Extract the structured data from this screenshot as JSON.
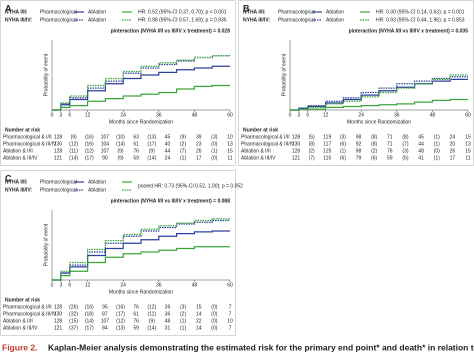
{
  "chart_data": [
    {
      "type": "line",
      "panel": "A",
      "legend_rows": [
        {
          "label": "NYHA I/II:",
          "hr": "HR: 0.52 (95%-CI 0.37, 0.70); p < 0.001"
        },
        {
          "label": "NYHA III/IV:",
          "hr": "HR: 0.98 (95%-CI 0.57, 1.69); p = 0.935"
        }
      ],
      "p_interaction": "pinteraction (NYHA I/II vs III/IV x treatment) = 0.028",
      "xlabel": "Months since Randomization",
      "ylabel": "Probability of event",
      "x": [
        0,
        3,
        6,
        12,
        18,
        24,
        30,
        36,
        42,
        48,
        54,
        60
      ],
      "xlim": [
        0,
        60
      ],
      "xticks": [
        0,
        3,
        6,
        12,
        24,
        36,
        48,
        60
      ],
      "ylim": [
        0,
        0.8
      ],
      "series": [
        {
          "name": "Pharmacological",
          "color": "#2b3f9e",
          "dashed": false,
          "values": [
            0,
            0.06,
            0.12,
            0.22,
            0.3,
            0.36,
            0.4,
            0.43,
            0.46,
            0.48,
            0.5,
            0.5
          ]
        },
        {
          "name": "Ablation",
          "color": "#3aa63a",
          "dashed": false,
          "values": [
            0,
            0.03,
            0.05,
            0.1,
            0.13,
            0.16,
            0.18,
            0.2,
            0.24,
            0.27,
            0.28,
            0.28
          ]
        },
        {
          "name": "Pharmacological",
          "color": "#2b3f9e",
          "dashed": true,
          "values": [
            0,
            0.07,
            0.14,
            0.25,
            0.33,
            0.42,
            0.48,
            0.52,
            0.56,
            0.6,
            0.62,
            0.62
          ]
        },
        {
          "name": "Ablation",
          "color": "#3aa63a",
          "dashed": true,
          "values": [
            0,
            0.08,
            0.16,
            0.28,
            0.36,
            0.44,
            0.5,
            0.54,
            0.57,
            0.6,
            0.62,
            0.63
          ]
        }
      ],
      "risk_table": {
        "title": "Number at risk",
        "rows": [
          {
            "label": "Pharmacological & I/II",
            "values": [
              "128",
              "(9)",
              "(16)",
              "107",
              "(10)",
              "63",
              "(13)",
              "45",
              "(9)",
              "39",
              "(3)",
              "10"
            ]
          },
          {
            "label": "Pharmacological & III/IV",
            "values": [
              "130",
              "(12)",
              "(16)",
              "104",
              "(14)",
              "61",
              "(17)",
              "40",
              "(2)",
              "23",
              "(0)",
              "13"
            ]
          },
          {
            "label": "Ablation & I/II",
            "values": [
              "128",
              "(11)",
              "(12)",
              "107",
              "(9)",
              "76",
              "(9)",
              "44",
              "(7)",
              "26",
              "(1)",
              "15"
            ]
          },
          {
            "label": "Ablation & III/IV",
            "values": [
              "121",
              "(14)",
              "(17)",
              "90",
              "(9)",
              "59",
              "(14)",
              "24",
              "(1)",
              "17",
              "(0)",
              "11"
            ]
          }
        ]
      }
    },
    {
      "type": "line",
      "panel": "B",
      "legend_rows": [
        {
          "label": "NYHA I/II:",
          "hr": "HR: 0.30 (95%-CI 0.14, 0.63); p = 0.001"
        },
        {
          "label": "NYHA III/IV:",
          "hr": "HR: 0.93 (95%-CI 0.44, 1.96); p = 0.853"
        }
      ],
      "p_interaction": "pinteraction (NYHA I/II vs III/IV x treatment) = 0.035",
      "xlabel": "Months since Randomization",
      "ylabel": "Probability of event",
      "x": [
        0,
        3,
        6,
        12,
        18,
        24,
        30,
        36,
        42,
        48,
        54,
        60
      ],
      "xlim": [
        0,
        60
      ],
      "xticks": [
        0,
        3,
        6,
        12,
        24,
        36,
        48,
        60
      ],
      "ylim": [
        0,
        0.8
      ],
      "series": [
        {
          "name": "Pharmacological",
          "color": "#2b3f9e",
          "dashed": false,
          "values": [
            0,
            0.02,
            0.04,
            0.08,
            0.12,
            0.17,
            0.22,
            0.26,
            0.3,
            0.33,
            0.35,
            0.35
          ]
        },
        {
          "name": "Ablation",
          "color": "#3aa63a",
          "dashed": false,
          "values": [
            0,
            0.01,
            0.01,
            0.03,
            0.04,
            0.05,
            0.06,
            0.07,
            0.09,
            0.11,
            0.12,
            0.12
          ]
        },
        {
          "name": "Pharmacological",
          "color": "#2b3f9e",
          "dashed": true,
          "values": [
            0,
            0.02,
            0.05,
            0.1,
            0.14,
            0.2,
            0.25,
            0.3,
            0.33,
            0.36,
            0.38,
            0.38
          ]
        },
        {
          "name": "Ablation",
          "color": "#3aa63a",
          "dashed": true,
          "values": [
            0,
            0.01,
            0.03,
            0.07,
            0.1,
            0.15,
            0.2,
            0.25,
            0.3,
            0.35,
            0.4,
            0.4
          ]
        }
      ],
      "risk_table": {
        "title": "Number at risk",
        "rows": [
          {
            "label": "Pharmacological & I/II",
            "values": [
              "128",
              "(5)",
              "119",
              "(3)",
              "98",
              "(8)",
              "71",
              "(8)",
              "45",
              "(1)",
              "24",
              "15"
            ]
          },
          {
            "label": "Pharmacological & III/IV",
            "values": [
              "130",
              "(8)",
              "117",
              "(6)",
              "92",
              "(8)",
              "71",
              "(7)",
              "44",
              "(1)",
              "20",
              "13"
            ]
          },
          {
            "label": "Ablation & I/II",
            "values": [
              "128",
              "(2)",
              "125",
              "(1)",
              "98",
              "(2)",
              "76",
              "(3)",
              "48",
              "(0)",
              "26",
              "15"
            ]
          },
          {
            "label": "Ablation & III/IV",
            "values": [
              "121",
              "(7)",
              "110",
              "(6)",
              "79",
              "(6)",
              "59",
              "(5)",
              "41",
              "(1)",
              "17",
              "11"
            ]
          }
        ]
      }
    },
    {
      "type": "line",
      "panel": "C",
      "legend_rows": [
        {
          "label": "NYHA I/II:"
        },
        {
          "label": "NYHA III/IV:"
        }
      ],
      "hr": "pooled HR: 0.73 (95%-CI 0.52, 1.00); p = 0.052",
      "p_interaction": "pinteraction (NYHA I/II vs III/IV x treatment) = 0.088",
      "xlabel": "Months since Randomization",
      "ylabel": "Probability of event",
      "x": [
        0,
        3,
        6,
        12,
        18,
        24,
        30,
        36,
        42,
        48,
        54,
        60
      ],
      "xlim": [
        0,
        60
      ],
      "xticks": [
        0,
        3,
        6,
        12,
        24,
        36,
        48,
        60
      ],
      "ylim": [
        0,
        0.8
      ],
      "series": [
        {
          "name": "Pharmacological",
          "color": "#2b3f9e",
          "dashed": false,
          "values": [
            0,
            0.08,
            0.15,
            0.28,
            0.36,
            0.42,
            0.46,
            0.5,
            0.53,
            0.55,
            0.56,
            0.56
          ]
        },
        {
          "name": "Ablation",
          "color": "#3aa63a",
          "dashed": false,
          "values": [
            0,
            0.05,
            0.1,
            0.2,
            0.26,
            0.3,
            0.32,
            0.34,
            0.36,
            0.38,
            0.38,
            0.38
          ]
        },
        {
          "name": "Pharmacological",
          "color": "#2b3f9e",
          "dashed": true,
          "values": [
            0,
            0.08,
            0.17,
            0.32,
            0.42,
            0.5,
            0.56,
            0.6,
            0.64,
            0.66,
            0.68,
            0.68
          ]
        },
        {
          "name": "Ablation",
          "color": "#3aa63a",
          "dashed": true,
          "values": [
            0,
            0.1,
            0.2,
            0.35,
            0.45,
            0.52,
            0.58,
            0.62,
            0.65,
            0.68,
            0.7,
            0.7
          ]
        }
      ],
      "risk_table": {
        "title": "Number at risk",
        "rows": [
          {
            "label": "Pharmacological & I/II",
            "values": [
              "128",
              "(26)",
              "(16)",
              "95",
              "(16)",
              "76",
              "(12)",
              "39",
              "(3)",
              "15",
              "(0)",
              "7"
            ]
          },
          {
            "label": "Pharmacological & III/IV",
            "values": [
              "130",
              "(32)",
              "(18)",
              "87",
              "(17)",
              "61",
              "(11)",
              "36",
              "(2)",
              "14",
              "(0)",
              "7"
            ]
          },
          {
            "label": "Ablation & I/II",
            "values": [
              "128",
              "(15)",
              "(14)",
              "107",
              "(12)",
              "76",
              "(9)",
              "48",
              "(1)",
              "22",
              "(0)",
              "10"
            ]
          },
          {
            "label": "Ablation & III/IV",
            "values": [
              "121",
              "(37)",
              "(17)",
              "84",
              "(13)",
              "59",
              "(14)",
              "31",
              "(1)",
              "14",
              "(0)",
              "7"
            ]
          }
        ]
      }
    }
  ],
  "figure_caption": {
    "label": "Figure 2.",
    "text": "Kaplan-Meier analysis demonstrating the estimated risk for the primary end point* and death* in relation to the"
  }
}
